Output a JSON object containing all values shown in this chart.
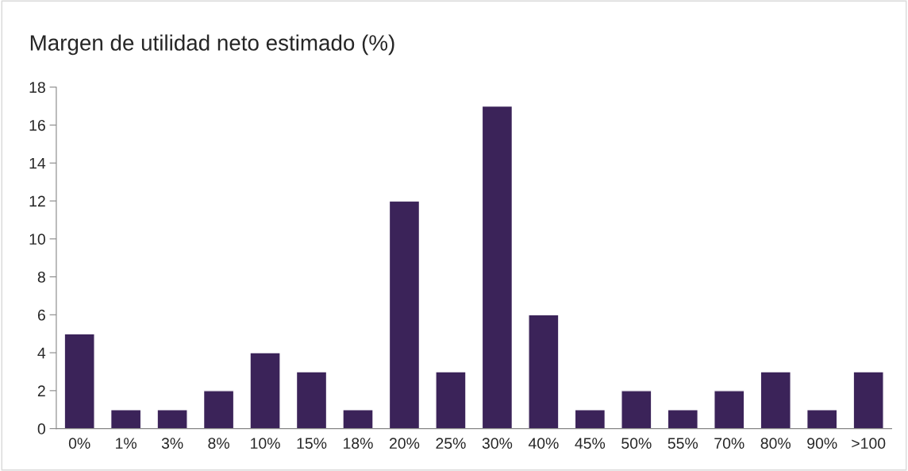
{
  "chart_data": {
    "type": "bar",
    "title": "Margen de utilidad neto estimado (%)",
    "categories": [
      "0%",
      "1%",
      "3%",
      "8%",
      "10%",
      "15%",
      "18%",
      "20%",
      "25%",
      "30%",
      "40%",
      "45%",
      "50%",
      "55%",
      "70%",
      "80%",
      "90%",
      ">100"
    ],
    "values": [
      5,
      1,
      1,
      2,
      4,
      3,
      1,
      12,
      3,
      17,
      6,
      1,
      2,
      1,
      2,
      3,
      1,
      3
    ],
    "color": "#3b2359",
    "ylim": [
      0,
      18
    ],
    "yticks": [
      0,
      2,
      4,
      6,
      8,
      10,
      12,
      14,
      16,
      18
    ],
    "grid": false
  }
}
